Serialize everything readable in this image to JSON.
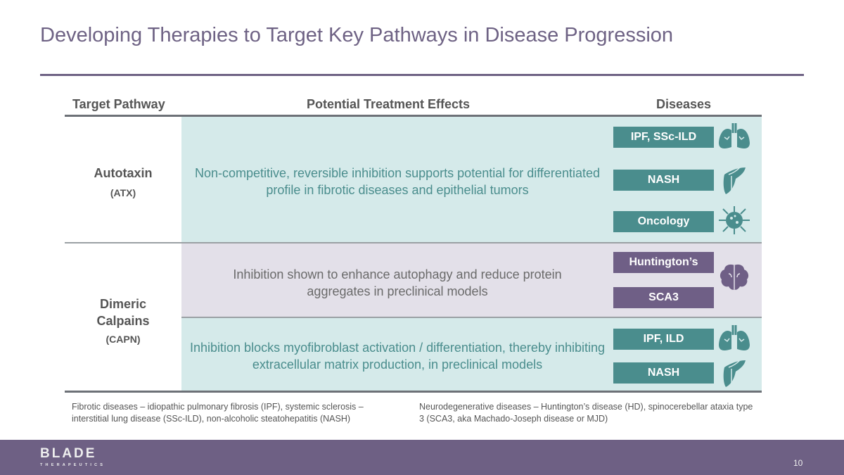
{
  "title": "Developing Therapies to Target Key Pathways in Disease Progression",
  "headers": {
    "pathway": "Target Pathway",
    "effects": "Potential Treatment Effects",
    "diseases": "Diseases"
  },
  "rows": [
    {
      "pathway": "Autotaxin",
      "abbr": "(ATX)",
      "effect": "Non-competitive, reversible inhibition supports potential for differentiated profile in fibrotic diseases and epithelial tumors"
    },
    {
      "pathway": "Dimeric Calpains",
      "abbr": "(CAPN)",
      "effect_a": "Inhibition shown to enhance autophagy and reduce protein aggregates in preclinical models",
      "effect_b": "Inhibition blocks myofibroblast activation / differentiation, thereby inhibiting extracellular matrix production, in preclinical models"
    }
  ],
  "badges": [
    {
      "label": "IPF, SSc-ILD",
      "icon": "lungs-icon"
    },
    {
      "label": "NASH",
      "icon": "liver-icon"
    },
    {
      "label": "Oncology",
      "icon": "tumor-cell-icon"
    },
    {
      "label": "Huntington’s",
      "icon": "brain-icon"
    },
    {
      "label": "SCA3",
      "icon": "brain-icon"
    },
    {
      "label": "IPF, ILD",
      "icon": "lungs-icon"
    },
    {
      "label": "NASH",
      "icon": "liver-icon"
    }
  ],
  "footnotes": {
    "fibrotic": "Fibrotic diseases – idiopathic pulmonary fibrosis (IPF), systemic sclerosis – interstitial lung disease (SSc-ILD), non-alcoholic steatohepatitis (NASH)",
    "neuro": "Neurodegenerative diseases – Huntington’s disease (HD), spinocerebellar ataxia type 3 (SCA3, aka Machado-Joseph disease or MJD)"
  },
  "footer": {
    "logo": "BLADE",
    "logo_sub": "THERAPEUTICS",
    "page": "10"
  },
  "colors": {
    "teal": "#4a8d8d",
    "purple": "#6f5f86",
    "teal_bg": "#d5eaea",
    "purple_bg": "#e3e0e9"
  }
}
